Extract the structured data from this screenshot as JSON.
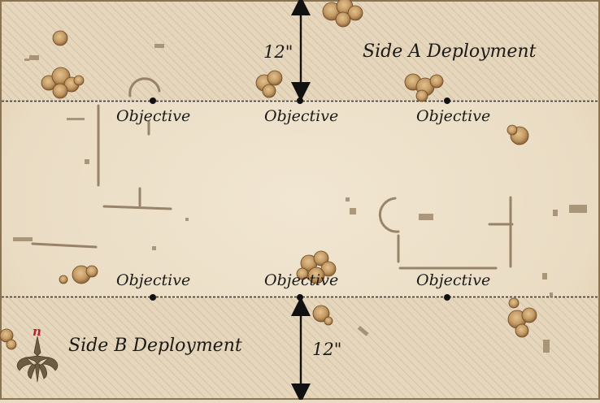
{
  "map": {
    "zones": {
      "top_label": "Side A Deployment",
      "bottom_label": "Side B Deployment"
    },
    "measurements": {
      "top": "12\"",
      "bottom": "12\""
    },
    "objectives": {
      "top": [
        "Objective",
        "Objective",
        "Objective"
      ],
      "bottom": [
        "Objective",
        "Objective",
        "Objective"
      ]
    },
    "compass": {
      "label": "n",
      "icon": "compass-rose-icon"
    },
    "colors": {
      "parchment": "#eadcc3",
      "deployment_hatch": "#b9aa92",
      "ink": "#1c1a17",
      "tree_fill": "#c49a64",
      "compass_n": "#b3262a"
    }
  }
}
